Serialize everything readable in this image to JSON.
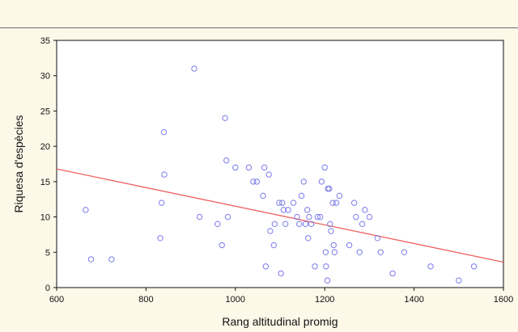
{
  "chart_data": {
    "type": "scatter",
    "title": "",
    "xlabel": "Rang altitudinal promig",
    "ylabel": "Riquesa d'espècies",
    "xlim": [
      600,
      1600
    ],
    "ylim": [
      0,
      35
    ],
    "xticks": [
      600,
      800,
      1000,
      1200,
      1400,
      1600
    ],
    "yticks": [
      0,
      5,
      10,
      15,
      20,
      25,
      30,
      35
    ],
    "grid": false,
    "colors": {
      "points": "#7b7bea",
      "trendline": "#f06060",
      "plot_background": "#ffffff",
      "page_background": "#fdf8e8"
    },
    "series": [
      {
        "points": [
          [
            665,
            11
          ],
          [
            677,
            4
          ],
          [
            723,
            4
          ],
          [
            832,
            7
          ],
          [
            835,
            12
          ],
          [
            840,
            22
          ],
          [
            841,
            16
          ],
          [
            908,
            31
          ],
          [
            920,
            10
          ],
          [
            960,
            9
          ],
          [
            970,
            6
          ],
          [
            977,
            24
          ],
          [
            980,
            18
          ],
          [
            983,
            10
          ],
          [
            1000,
            17
          ],
          [
            1030,
            17
          ],
          [
            1040,
            15
          ],
          [
            1048,
            15
          ],
          [
            1062,
            13
          ],
          [
            1065,
            17
          ],
          [
            1068,
            3
          ],
          [
            1075,
            16
          ],
          [
            1078,
            8
          ],
          [
            1086,
            6
          ],
          [
            1088,
            9
          ],
          [
            1098,
            12
          ],
          [
            1102,
            2
          ],
          [
            1105,
            12
          ],
          [
            1108,
            11
          ],
          [
            1112,
            9
          ],
          [
            1118,
            11
          ],
          [
            1130,
            12
          ],
          [
            1138,
            10
          ],
          [
            1143,
            9
          ],
          [
            1148,
            13
          ],
          [
            1153,
            15
          ],
          [
            1157,
            9
          ],
          [
            1161,
            11
          ],
          [
            1165,
            10
          ],
          [
            1163,
            7
          ],
          [
            1170,
            9
          ],
          [
            1178,
            3
          ],
          [
            1184,
            10
          ],
          [
            1190,
            10
          ],
          [
            1193,
            15
          ],
          [
            1200,
            17
          ],
          [
            1202,
            5
          ],
          [
            1203,
            3
          ],
          [
            1206,
            1
          ],
          [
            1207,
            14
          ],
          [
            1210,
            14
          ],
          [
            1212,
            9
          ],
          [
            1214,
            8
          ],
          [
            1218,
            12
          ],
          [
            1220,
            6
          ],
          [
            1222,
            5
          ],
          [
            1226,
            12
          ],
          [
            1233,
            13
          ],
          [
            1255,
            6
          ],
          [
            1266,
            12
          ],
          [
            1270,
            10
          ],
          [
            1278,
            5
          ],
          [
            1284,
            9
          ],
          [
            1290,
            11
          ],
          [
            1300,
            10
          ],
          [
            1318,
            7
          ],
          [
            1325,
            5
          ],
          [
            1352,
            2
          ],
          [
            1378,
            5
          ],
          [
            1437,
            3
          ],
          [
            1500,
            1
          ],
          [
            1534,
            3
          ]
        ]
      }
    ],
    "trendline": {
      "x": [
        600,
        1600
      ],
      "y": [
        16.8,
        3.6
      ]
    }
  }
}
